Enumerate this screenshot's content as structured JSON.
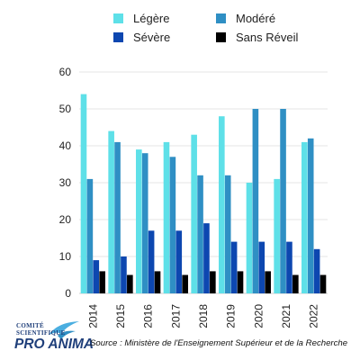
{
  "chart_data": {
    "type": "bar",
    "categories": [
      "2014",
      "2015",
      "2016",
      "2017",
      "2018",
      "2019",
      "2020",
      "2021",
      "2022"
    ],
    "series": [
      {
        "name": "Légère",
        "color": "#5ee0e8",
        "values": [
          54,
          44,
          39,
          41,
          43,
          48,
          30,
          31,
          41
        ]
      },
      {
        "name": "Modéré",
        "color": "#2f8fc4",
        "values": [
          31,
          41,
          38,
          37,
          32,
          32,
          50,
          50,
          42
        ]
      },
      {
        "name": "Sévère",
        "color": "#0d47b0",
        "values": [
          9,
          10,
          17,
          17,
          19,
          14,
          14,
          14,
          12
        ]
      },
      {
        "name": "Sans Réveil",
        "color": "#000000",
        "values": [
          6,
          5,
          6,
          5,
          6,
          6,
          6,
          5,
          5
        ]
      }
    ],
    "ylim": [
      0,
      60
    ],
    "yticks": [
      0,
      10,
      20,
      30,
      40,
      50,
      60
    ],
    "grid": true,
    "legend_position": "top-center",
    "xlabel": "",
    "ylabel": ""
  },
  "footer": {
    "source": "Source : Ministère de l'Enseignement Supérieur et de la Recherche"
  },
  "logo": {
    "line1": "COMITÉ",
    "line2": "SCIENTIFIQUE",
    "main": "PRO ANIMA"
  }
}
